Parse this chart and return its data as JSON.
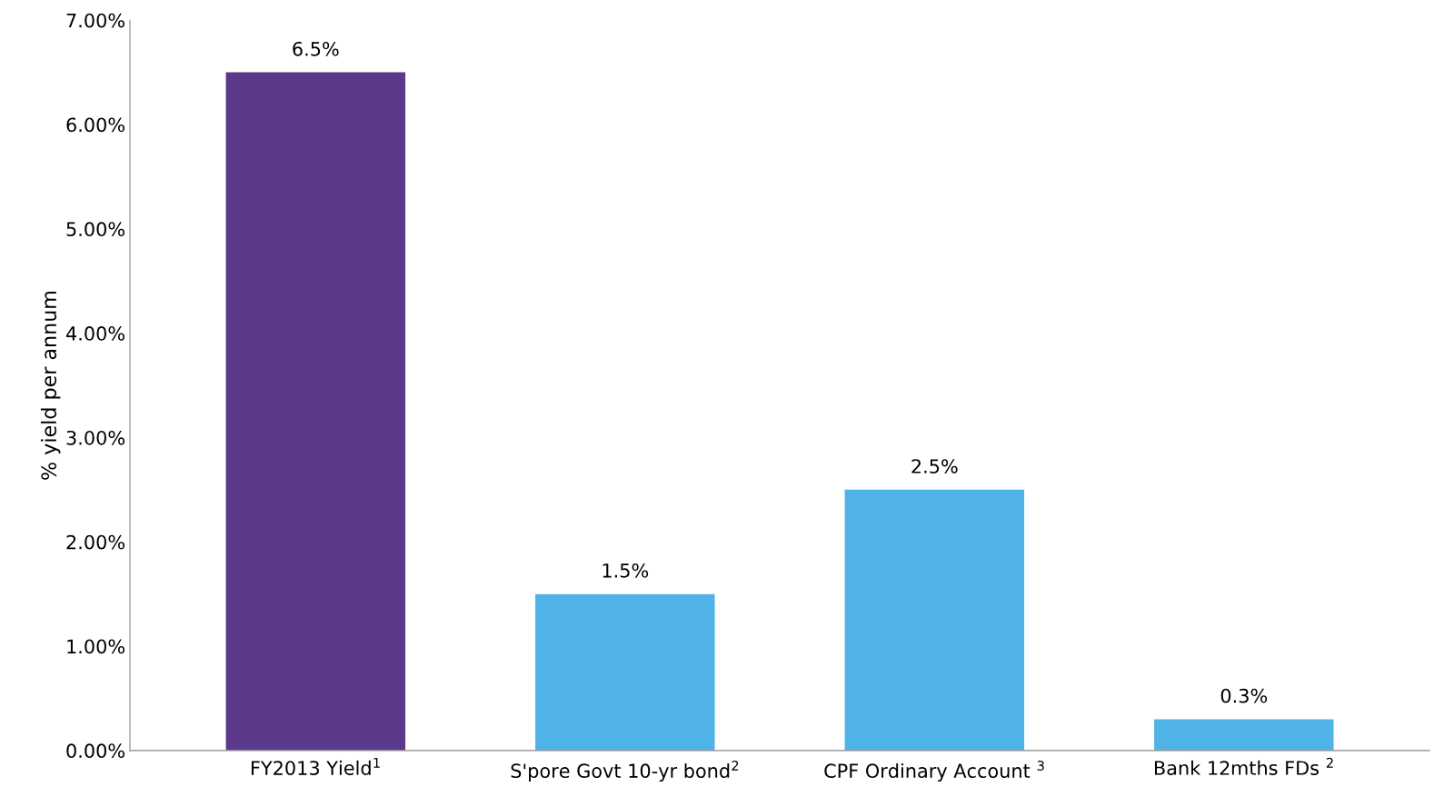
{
  "chart_data": {
    "type": "bar",
    "ylabel": "% yield per annum",
    "categories": [
      "FY2013 Yield$^{1}$",
      "S'pore Govt 10-yr bond$^{2}$",
      "CPF Ordinary Account $^{3}$",
      "Bank 12mths FDs $^{2}$"
    ],
    "values": [
      6.5,
      1.5,
      2.5,
      0.3
    ],
    "colors": [
      "#5b3a8c",
      "#4fb3e8",
      "#4fb3e8",
      "#4fb3e8"
    ],
    "value_labels": [
      "6.5%",
      "1.5%",
      "2.5%",
      "0.3%"
    ],
    "ylim": [
      0,
      7
    ],
    "yticks": [
      {
        "value": 0,
        "label": "0.00%"
      },
      {
        "value": 1,
        "label": "1.00%"
      },
      {
        "value": 2,
        "label": "2.00%"
      },
      {
        "value": 3,
        "label": "3.00%"
      },
      {
        "value": 4,
        "label": "4.00%"
      },
      {
        "value": 5,
        "label": "5.00%"
      },
      {
        "value": 6,
        "label": "6.00%"
      },
      {
        "value": 7,
        "label": "7.00%"
      }
    ],
    "grid": false,
    "legend": false
  }
}
